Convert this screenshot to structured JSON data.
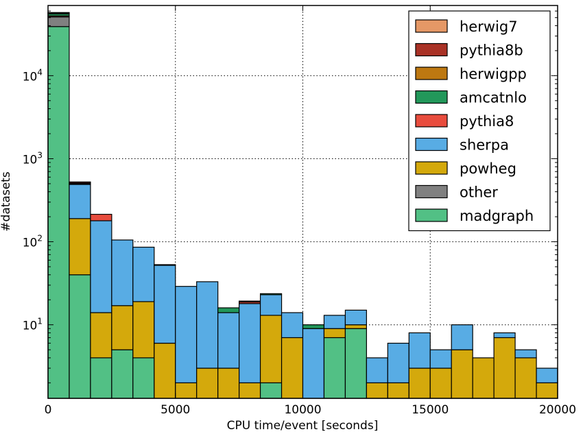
{
  "chart_data": {
    "type": "bar",
    "stacked": true,
    "title": "",
    "xlabel": "CPU time/event [seconds]",
    "ylabel": "#datasets",
    "xscale": "linear",
    "yscale": "log",
    "xlim": [
      0,
      20000
    ],
    "ylim": [
      1.3,
      70000
    ],
    "grid": true,
    "legend_position": "top-right",
    "x_ticks": [
      0,
      5000,
      10000,
      15000,
      20000
    ],
    "x_tick_labels": [
      "0",
      "5000",
      "10000",
      "15000",
      "20000"
    ],
    "y_ticks": [
      10,
      100,
      1000,
      10000
    ],
    "y_tick_labels": [
      {
        "base": "10",
        "exp": "1"
      },
      {
        "base": "10",
        "exp": "2"
      },
      {
        "base": "10",
        "exp": "3"
      },
      {
        "base": "10",
        "exp": "4"
      }
    ],
    "bin_edges": [
      0,
      833,
      1667,
      2500,
      3333,
      4167,
      5000,
      5833,
      6667,
      7500,
      8333,
      9167,
      10000,
      10833,
      11667,
      12500,
      13333,
      14167,
      15000,
      15833,
      16667,
      17500,
      18333,
      19167,
      20000
    ],
    "series": [
      {
        "name": "madgraph",
        "color": "#52c085",
        "values": [
          39000,
          40,
          4,
          5,
          4,
          0,
          0,
          0,
          0,
          0,
          2,
          0,
          0,
          7,
          9,
          0,
          0,
          0,
          0,
          0,
          0,
          0,
          0,
          0
        ]
      },
      {
        "name": "other",
        "color": "#808080",
        "values": [
          12000,
          0,
          0,
          0,
          0,
          0,
          0,
          0,
          0,
          0,
          0,
          0,
          0,
          0,
          0,
          0,
          0,
          0,
          0,
          0,
          0,
          0,
          0,
          0
        ]
      },
      {
        "name": "powheg",
        "color": "#d4a90c",
        "values": [
          0,
          150,
          10,
          12,
          15,
          6,
          2,
          3,
          3,
          2,
          11,
          7,
          0,
          2,
          1,
          2,
          2,
          3,
          3,
          5,
          4,
          7,
          4,
          2
        ]
      },
      {
        "name": "sherpa",
        "color": "#58ace4",
        "values": [
          0,
          300,
          165,
          88,
          67,
          46,
          27,
          30,
          11,
          16,
          10,
          7,
          9,
          4,
          5,
          2,
          4,
          5,
          2,
          5,
          0,
          1,
          1,
          1
        ]
      },
      {
        "name": "pythia8",
        "color": "#e84c3d",
        "values": [
          1500,
          10,
          35,
          0,
          0,
          0,
          0,
          0,
          0,
          0.8,
          0,
          0,
          0,
          0,
          0,
          0,
          0,
          0,
          0,
          0,
          0,
          0,
          0,
          0
        ]
      },
      {
        "name": "amcatnlo",
        "color": "#22975a",
        "values": [
          3000,
          0,
          0,
          0,
          0,
          0,
          0,
          0,
          2,
          0,
          0.7,
          0,
          1,
          0,
          0,
          0,
          0,
          0,
          0,
          0,
          0,
          0,
          0,
          0
        ]
      },
      {
        "name": "herwigpp",
        "color": "#bd7811",
        "values": [
          800,
          10,
          0,
          0,
          0,
          1,
          0,
          0,
          0,
          0,
          0,
          0,
          0,
          0,
          0,
          0,
          0,
          0,
          0,
          0,
          0,
          0,
          0,
          0
        ]
      },
      {
        "name": "pythia8b",
        "color": "#a93226",
        "values": [
          800,
          15,
          0,
          0,
          0,
          0,
          0,
          0,
          0,
          0.5,
          0,
          0,
          0,
          0,
          0,
          0,
          0,
          0,
          0,
          0,
          0,
          0,
          0,
          0
        ]
      },
      {
        "name": "herwig7",
        "color": "#e59866",
        "values": [
          500,
          0,
          0,
          0,
          0,
          0,
          0,
          0,
          0,
          0,
          0,
          0,
          0,
          0,
          0,
          0,
          0,
          0,
          0,
          0,
          0,
          0,
          0,
          0
        ]
      }
    ],
    "legend_order": [
      "herwig7",
      "pythia8b",
      "herwigpp",
      "amcatnlo",
      "pythia8",
      "sherpa",
      "powheg",
      "other",
      "madgraph"
    ]
  }
}
